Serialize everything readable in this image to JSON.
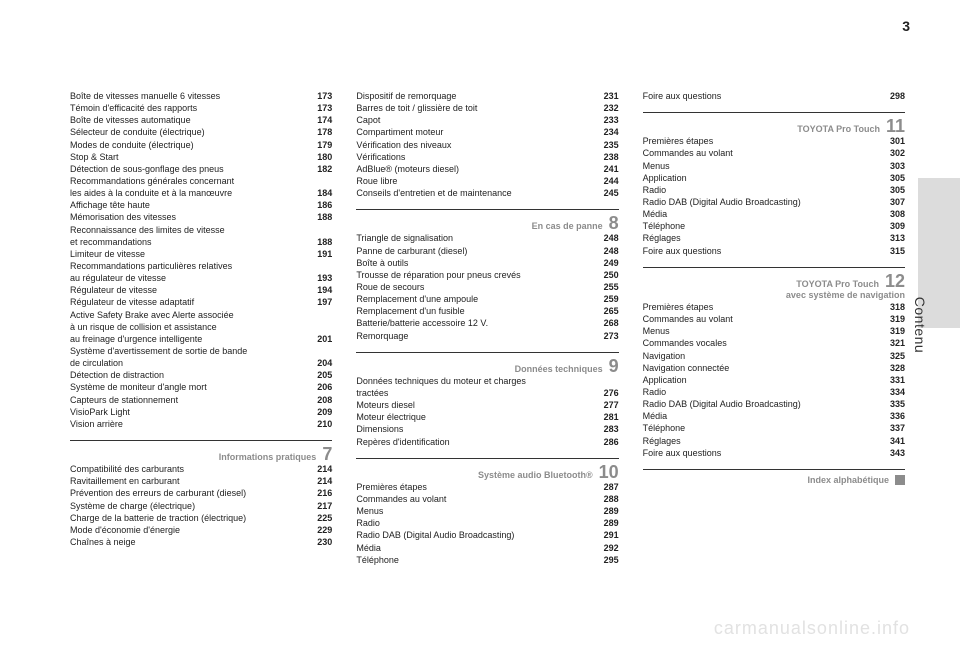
{
  "page_number": "3",
  "side_label": "Contenu",
  "watermark": "carmanualsonline.info",
  "columns": {
    "col1": {
      "rows1": [
        [
          "Boîte de vitesses manuelle 6 vitesses",
          "173"
        ],
        [
          "Témoin d'efficacité des rapports",
          "173"
        ],
        [
          "Boîte de vitesses automatique",
          "174"
        ],
        [
          "Sélecteur de conduite (électrique)",
          "178"
        ],
        [
          "Modes de conduite (électrique)",
          "179"
        ],
        [
          "Stop & Start",
          "180"
        ],
        [
          "Détection de sous-gonflage des pneus",
          "182"
        ],
        [
          "Recommandations générales concernant",
          ""
        ],
        [
          "les aides à la conduite et à la manœuvre",
          "184"
        ],
        [
          "Affichage tête haute",
          "186"
        ],
        [
          "Mémorisation des vitesses",
          "188"
        ],
        [
          "Reconnaissance des limites de vitesse",
          ""
        ],
        [
          "et recommandations",
          "188"
        ],
        [
          "Limiteur de vitesse",
          "191"
        ],
        [
          "Recommandations particulières relatives",
          ""
        ],
        [
          "au régulateur de vitesse",
          "193"
        ],
        [
          "Régulateur de vitesse",
          "194"
        ],
        [
          "Régulateur de vitesse adaptatif",
          "197"
        ],
        [
          "Active Safety Brake avec Alerte associée",
          ""
        ],
        [
          "à un risque de collision et assistance",
          ""
        ],
        [
          "au freinage d'urgence intelligente",
          "201"
        ],
        [
          "Système d'avertissement de sortie de bande",
          ""
        ],
        [
          "de circulation",
          "204"
        ],
        [
          "Détection de distraction",
          "205"
        ],
        [
          "Système de moniteur d'angle mort",
          "206"
        ],
        [
          "Capteurs de stationnement",
          "208"
        ],
        [
          "VisioPark Light",
          "209"
        ],
        [
          "Vision arrière",
          "210"
        ]
      ],
      "section7_title": "Informations pratiques",
      "section7_num": "7",
      "rows7": [
        [
          "Compatibilité des carburants",
          "214"
        ],
        [
          "Ravitaillement en carburant",
          "214"
        ],
        [
          "Prévention des erreurs de carburant (diesel)",
          "216"
        ],
        [
          "Système de charge (électrique)",
          "217"
        ],
        [
          "Charge de la batterie de traction (électrique)",
          "225"
        ],
        [
          "Mode d'économie d'énergie",
          "229"
        ],
        [
          "Chaînes à neige",
          "230"
        ]
      ]
    },
    "col2": {
      "rows_top": [
        [
          "Dispositif de remorquage",
          "231"
        ],
        [
          "Barres de toit / glissière de toit",
          "232"
        ],
        [
          "Capot",
          "233"
        ],
        [
          "Compartiment moteur",
          "234"
        ],
        [
          "Vérification des niveaux",
          "235"
        ],
        [
          "Vérifications",
          "238"
        ],
        [
          "AdBlue® (moteurs diesel)",
          "241"
        ],
        [
          "Roue libre",
          "244"
        ],
        [
          "Conseils d'entretien et de maintenance",
          "245"
        ]
      ],
      "section8_title": "En cas de panne",
      "section8_num": "8",
      "rows8": [
        [
          "Triangle de signalisation",
          "248"
        ],
        [
          "Panne de carburant (diesel)",
          "248"
        ],
        [
          "Boîte à outils",
          "249"
        ],
        [
          "Trousse de réparation pour pneus crevés",
          "250"
        ],
        [
          "Roue de secours",
          "255"
        ],
        [
          "Remplacement d'une ampoule",
          "259"
        ],
        [
          "Remplacement d'un fusible",
          "265"
        ],
        [
          "Batterie/batterie accessoire 12 V.",
          "268"
        ],
        [
          "Remorquage",
          "273"
        ]
      ],
      "section9_title": "Données techniques",
      "section9_num": "9",
      "rows9": [
        [
          "Données techniques du moteur et charges",
          ""
        ],
        [
          "tractées",
          "276"
        ],
        [
          "Moteurs diesel",
          "277"
        ],
        [
          "Moteur électrique",
          "281"
        ],
        [
          "Dimensions",
          "283"
        ],
        [
          "Repères d'identification",
          "286"
        ]
      ],
      "section10_title": "Système audio Bluetooth®",
      "section10_num": "10",
      "rows10": [
        [
          "Premières étapes",
          "287"
        ],
        [
          "Commandes au volant",
          "288"
        ],
        [
          "Menus",
          "289"
        ],
        [
          "Radio",
          "289"
        ],
        [
          "Radio DAB (Digital Audio Broadcasting)",
          "291"
        ],
        [
          "Média",
          "292"
        ],
        [
          "Téléphone",
          "295"
        ]
      ]
    },
    "col3": {
      "rows_top": [
        [
          "Foire aux questions",
          "298"
        ]
      ],
      "section11_title": "TOYOTA Pro Touch",
      "section11_num": "11",
      "rows11": [
        [
          "Premières étapes",
          "301"
        ],
        [
          "Commandes au volant",
          "302"
        ],
        [
          "Menus",
          "303"
        ],
        [
          "Application",
          "305"
        ],
        [
          "Radio",
          "305"
        ],
        [
          "Radio DAB (Digital Audio Broadcasting)",
          "307"
        ],
        [
          "Média",
          "308"
        ],
        [
          "Téléphone",
          "309"
        ],
        [
          "Réglages",
          "313"
        ],
        [
          "Foire aux questions",
          "315"
        ]
      ],
      "section12_title": "TOYOTA Pro Touch",
      "section12_sub": "avec système de navigation",
      "section12_num": "12",
      "rows12": [
        [
          "Premières étapes",
          "318"
        ],
        [
          "Commandes au volant",
          "319"
        ],
        [
          "Menus",
          "319"
        ],
        [
          "Commandes vocales",
          "321"
        ],
        [
          "Navigation",
          "325"
        ],
        [
          "Navigation connectée",
          "328"
        ],
        [
          "Application",
          "331"
        ],
        [
          "Radio",
          "334"
        ],
        [
          "Radio DAB (Digital Audio Broadcasting)",
          "335"
        ],
        [
          "Média",
          "336"
        ],
        [
          "Téléphone",
          "337"
        ],
        [
          "Réglages",
          "341"
        ],
        [
          "Foire aux questions",
          "343"
        ]
      ],
      "index_title": "Index alphabétique"
    }
  }
}
